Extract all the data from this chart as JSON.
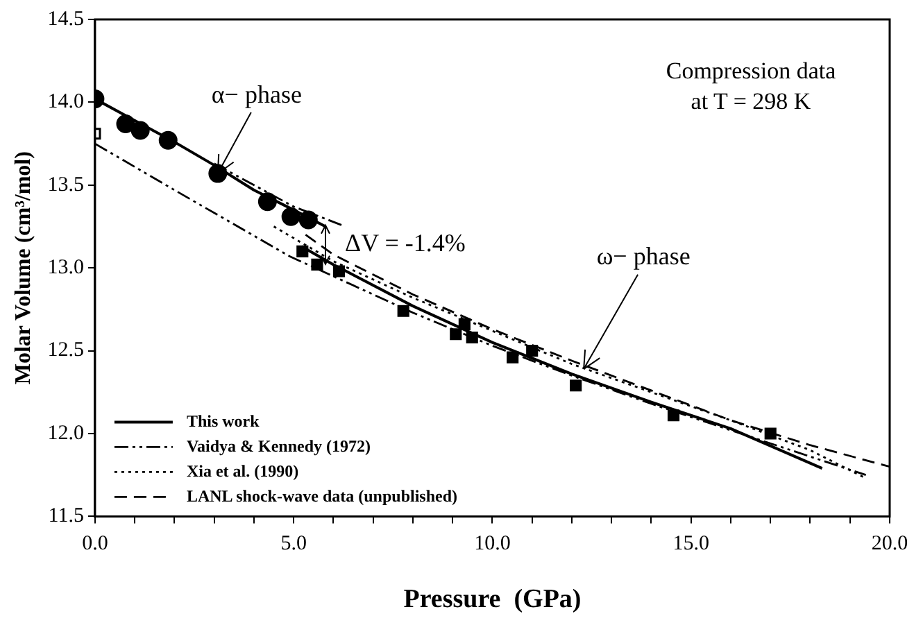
{
  "chart_data": {
    "type": "line",
    "title": "Compression data at T = 298 K",
    "xlabel": "Pressure  (GPa)",
    "ylabel": "Molar Volume (cm³/mol)",
    "xlim": [
      0,
      20
    ],
    "ylim": [
      11.5,
      14.5
    ],
    "xticks": [
      {
        "value": 0,
        "label": "0.0"
      },
      {
        "value": 1,
        "label": null
      },
      {
        "value": 2,
        "label": null
      },
      {
        "value": 3,
        "label": null
      },
      {
        "value": 4,
        "label": null
      },
      {
        "value": 5,
        "label": "5.0"
      },
      {
        "value": 6,
        "label": null
      },
      {
        "value": 7,
        "label": null
      },
      {
        "value": 8,
        "label": null
      },
      {
        "value": 9,
        "label": null
      },
      {
        "value": 10,
        "label": "10.0"
      },
      {
        "value": 11,
        "label": null
      },
      {
        "value": 12,
        "label": null
      },
      {
        "value": 13,
        "label": null
      },
      {
        "value": 14,
        "label": null
      },
      {
        "value": 15,
        "label": "15.0"
      },
      {
        "value": 16,
        "label": null
      },
      {
        "value": 17,
        "label": null
      },
      {
        "value": 18,
        "label": null
      },
      {
        "value": 19,
        "label": null
      },
      {
        "value": 20,
        "label": "20.0"
      }
    ],
    "yticks": [
      11.5,
      {
        "value": 12,
        "label": "12.0"
      },
      12.5,
      {
        "value": 13,
        "label": "13.0"
      },
      13.5,
      {
        "value": 14,
        "label": "14.0"
      },
      14.5
    ],
    "grid": false,
    "legend": "bottom left",
    "series": [
      {
        "name": "This work",
        "line_style": "solid",
        "marker": "none",
        "color": "#000000",
        "x": [
          0,
          1,
          2,
          3,
          4,
          5,
          5.8
        ],
        "values": [
          14.02,
          13.89,
          13.76,
          13.62,
          13.47,
          13.35,
          13.25
        ]
      },
      {
        "line_style": "solid",
        "marker": "none",
        "color": "#000000",
        "x": [
          5.2,
          6,
          8,
          10,
          12,
          14,
          16,
          18.3
        ],
        "values": [
          13.13,
          13.02,
          12.77,
          12.55,
          12.36,
          12.19,
          12.03,
          11.79
        ]
      },
      {
        "name": "Vaidya & Kennedy (1972)",
        "line_style": "dashdot",
        "marker": "none",
        "color": "#000000",
        "x": [
          3,
          4,
          5,
          6.3
        ],
        "values": [
          13.63,
          13.5,
          13.37,
          13.25
        ]
      },
      {
        "line_style": "dashdot",
        "marker": "none",
        "color": "#000000",
        "x": [
          0,
          2,
          4.9,
          8,
          10,
          12,
          14,
          16,
          19.4
        ],
        "values": [
          13.75,
          13.47,
          13.07,
          12.73,
          12.53,
          12.35,
          12.18,
          12.02,
          11.75
        ]
      },
      {
        "name": "Xia et al. (1990)",
        "line_style": "dotted",
        "marker": "none",
        "color": "#000000",
        "x": [
          4.5,
          6,
          8,
          10,
          12,
          14,
          16,
          18,
          19.4
        ],
        "values": [
          13.25,
          13.04,
          12.82,
          12.62,
          12.42,
          12.25,
          12.08,
          11.9,
          11.73
        ]
      },
      {
        "name": "LANL shock-wave data (unpublished)",
        "line_style": "dashed",
        "marker": "none",
        "color": "#000000",
        "x": [
          5.3,
          6,
          8,
          10,
          12,
          14,
          16,
          18,
          20
        ],
        "values": [
          13.2,
          13.08,
          12.84,
          12.63,
          12.44,
          12.26,
          12.08,
          11.93,
          11.8
        ]
      },
      {
        "type": "scatter",
        "marker": "circle",
        "color": "#000000",
        "x": [
          0,
          0.77,
          1.14,
          1.84,
          3.09,
          4.34,
          4.93,
          5.37
        ],
        "values": [
          14.02,
          13.87,
          13.83,
          13.77,
          13.57,
          13.4,
          13.31,
          13.29
        ]
      },
      {
        "type": "scatter",
        "marker": "square",
        "color": "#000000",
        "x": [
          5.22,
          5.59,
          6.14,
          7.76,
          9.3,
          9.08,
          9.49,
          10.51,
          11,
          12.1,
          14.56,
          17
        ],
        "values": [
          13.1,
          13.02,
          12.98,
          12.74,
          12.66,
          12.6,
          12.58,
          12.46,
          12.5,
          12.29,
          12.11,
          12.0
        ]
      },
      {
        "type": "scatter",
        "marker": "square",
        "color": "#ffffff",
        "x": [
          0
        ],
        "values": [
          13.81
        ]
      }
    ],
    "annotations": [
      {
        "text": "α− phase",
        "x": 3.09,
        "y": 13.57
      },
      {
        "text": "ω− phase",
        "x": 12.3,
        "y": 12.39
      },
      {
        "text": "ΔV = -1.4%",
        "x": 5.8,
        "y": 13.14
      }
    ]
  }
}
